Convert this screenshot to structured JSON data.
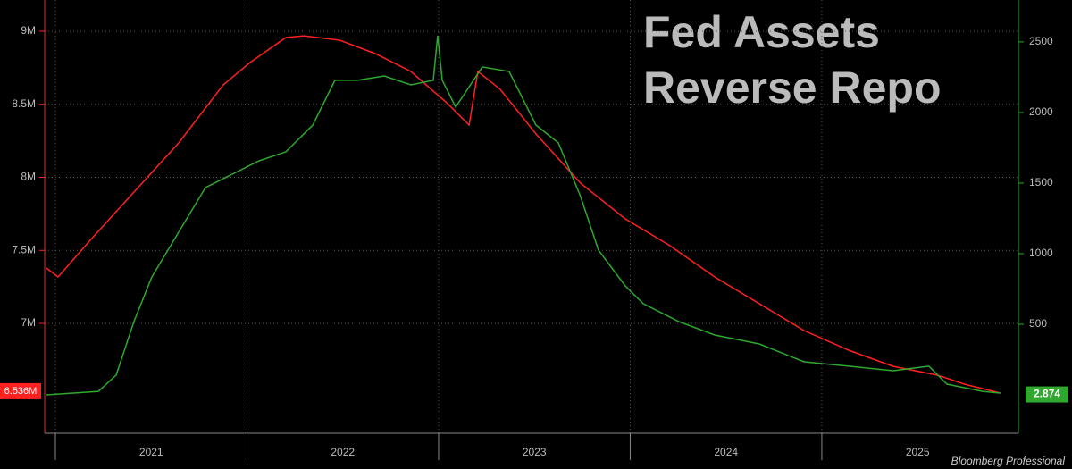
{
  "chart_data": {
    "type": "line",
    "source": "Bloomberg Professional",
    "xlim": [
      2020.944,
      2026.026
    ],
    "xticks": [
      2021,
      2022,
      2023,
      2024,
      2025
    ],
    "ylim": [
      6.248,
      9.214
    ],
    "yticks": [
      {
        "value": 7,
        "label": "7M"
      },
      {
        "value": 7.5,
        "label": "7.5M"
      },
      {
        "value": 8,
        "label": "8M"
      },
      {
        "value": 8.5,
        "label": "8.5M"
      },
      {
        "value": 9,
        "label": "9M"
      }
    ],
    "y2lim": [
      -272,
      2797
    ],
    "y2ticks": [
      500,
      1000,
      1500,
      2000,
      2500
    ],
    "grid": true,
    "series": [
      {
        "name": "Fed Assets",
        "color": "#ff2020",
        "axis": "y",
        "x": [
          2020.953,
          2021.014,
          2021.177,
          2021.41,
          2021.643,
          2021.876,
          2022.016,
          2022.203,
          2022.296,
          2022.483,
          2022.669,
          2022.855,
          2023.042,
          2023.159,
          2023.205,
          2023.322,
          2023.508,
          2023.741,
          2023.974,
          2024.207,
          2024.441,
          2024.674,
          2024.907,
          2025.14,
          2025.373,
          2025.606,
          2025.746,
          2025.932
        ],
        "values": [
          7.379,
          7.318,
          7.563,
          7.899,
          8.235,
          8.633,
          8.786,
          8.957,
          8.969,
          8.939,
          8.847,
          8.725,
          8.511,
          8.358,
          8.725,
          8.602,
          8.297,
          7.96,
          7.716,
          7.532,
          7.318,
          7.135,
          6.951,
          6.817,
          6.706,
          6.645,
          6.584,
          6.523
        ],
        "last_value": {
          "value": 6.536,
          "label": "6.536M"
        }
      },
      {
        "name": "Reverse Repo",
        "color": "#2ea82e",
        "axis": "y2",
        "x": [
          2020.953,
          2021.224,
          2021.317,
          2021.41,
          2021.503,
          2021.643,
          2021.783,
          2021.923,
          2022.063,
          2022.203,
          2022.343,
          2022.459,
          2022.576,
          2022.716,
          2022.855,
          2022.972,
          2022.995,
          2023.019,
          2023.089,
          2023.228,
          2023.368,
          2023.508,
          2023.625,
          2023.741,
          2023.834,
          2023.974,
          2024.068,
          2024.254,
          2024.441,
          2024.674,
          2024.907,
          2025.14,
          2025.373,
          2025.559,
          2025.653,
          2025.839,
          2025.932
        ],
        "values": [
          0,
          25,
          140,
          519,
          835,
          1152,
          1468,
          1563,
          1658,
          1722,
          1911,
          2228,
          2228,
          2259,
          2196,
          2228,
          2544,
          2228,
          2038,
          2323,
          2291,
          1911,
          1785,
          1405,
          1025,
          772,
          646,
          519,
          424,
          361,
          234,
          203,
          171,
          203,
          76,
          25,
          13
        ],
        "last_value": 2.874
      }
    ]
  }
}
